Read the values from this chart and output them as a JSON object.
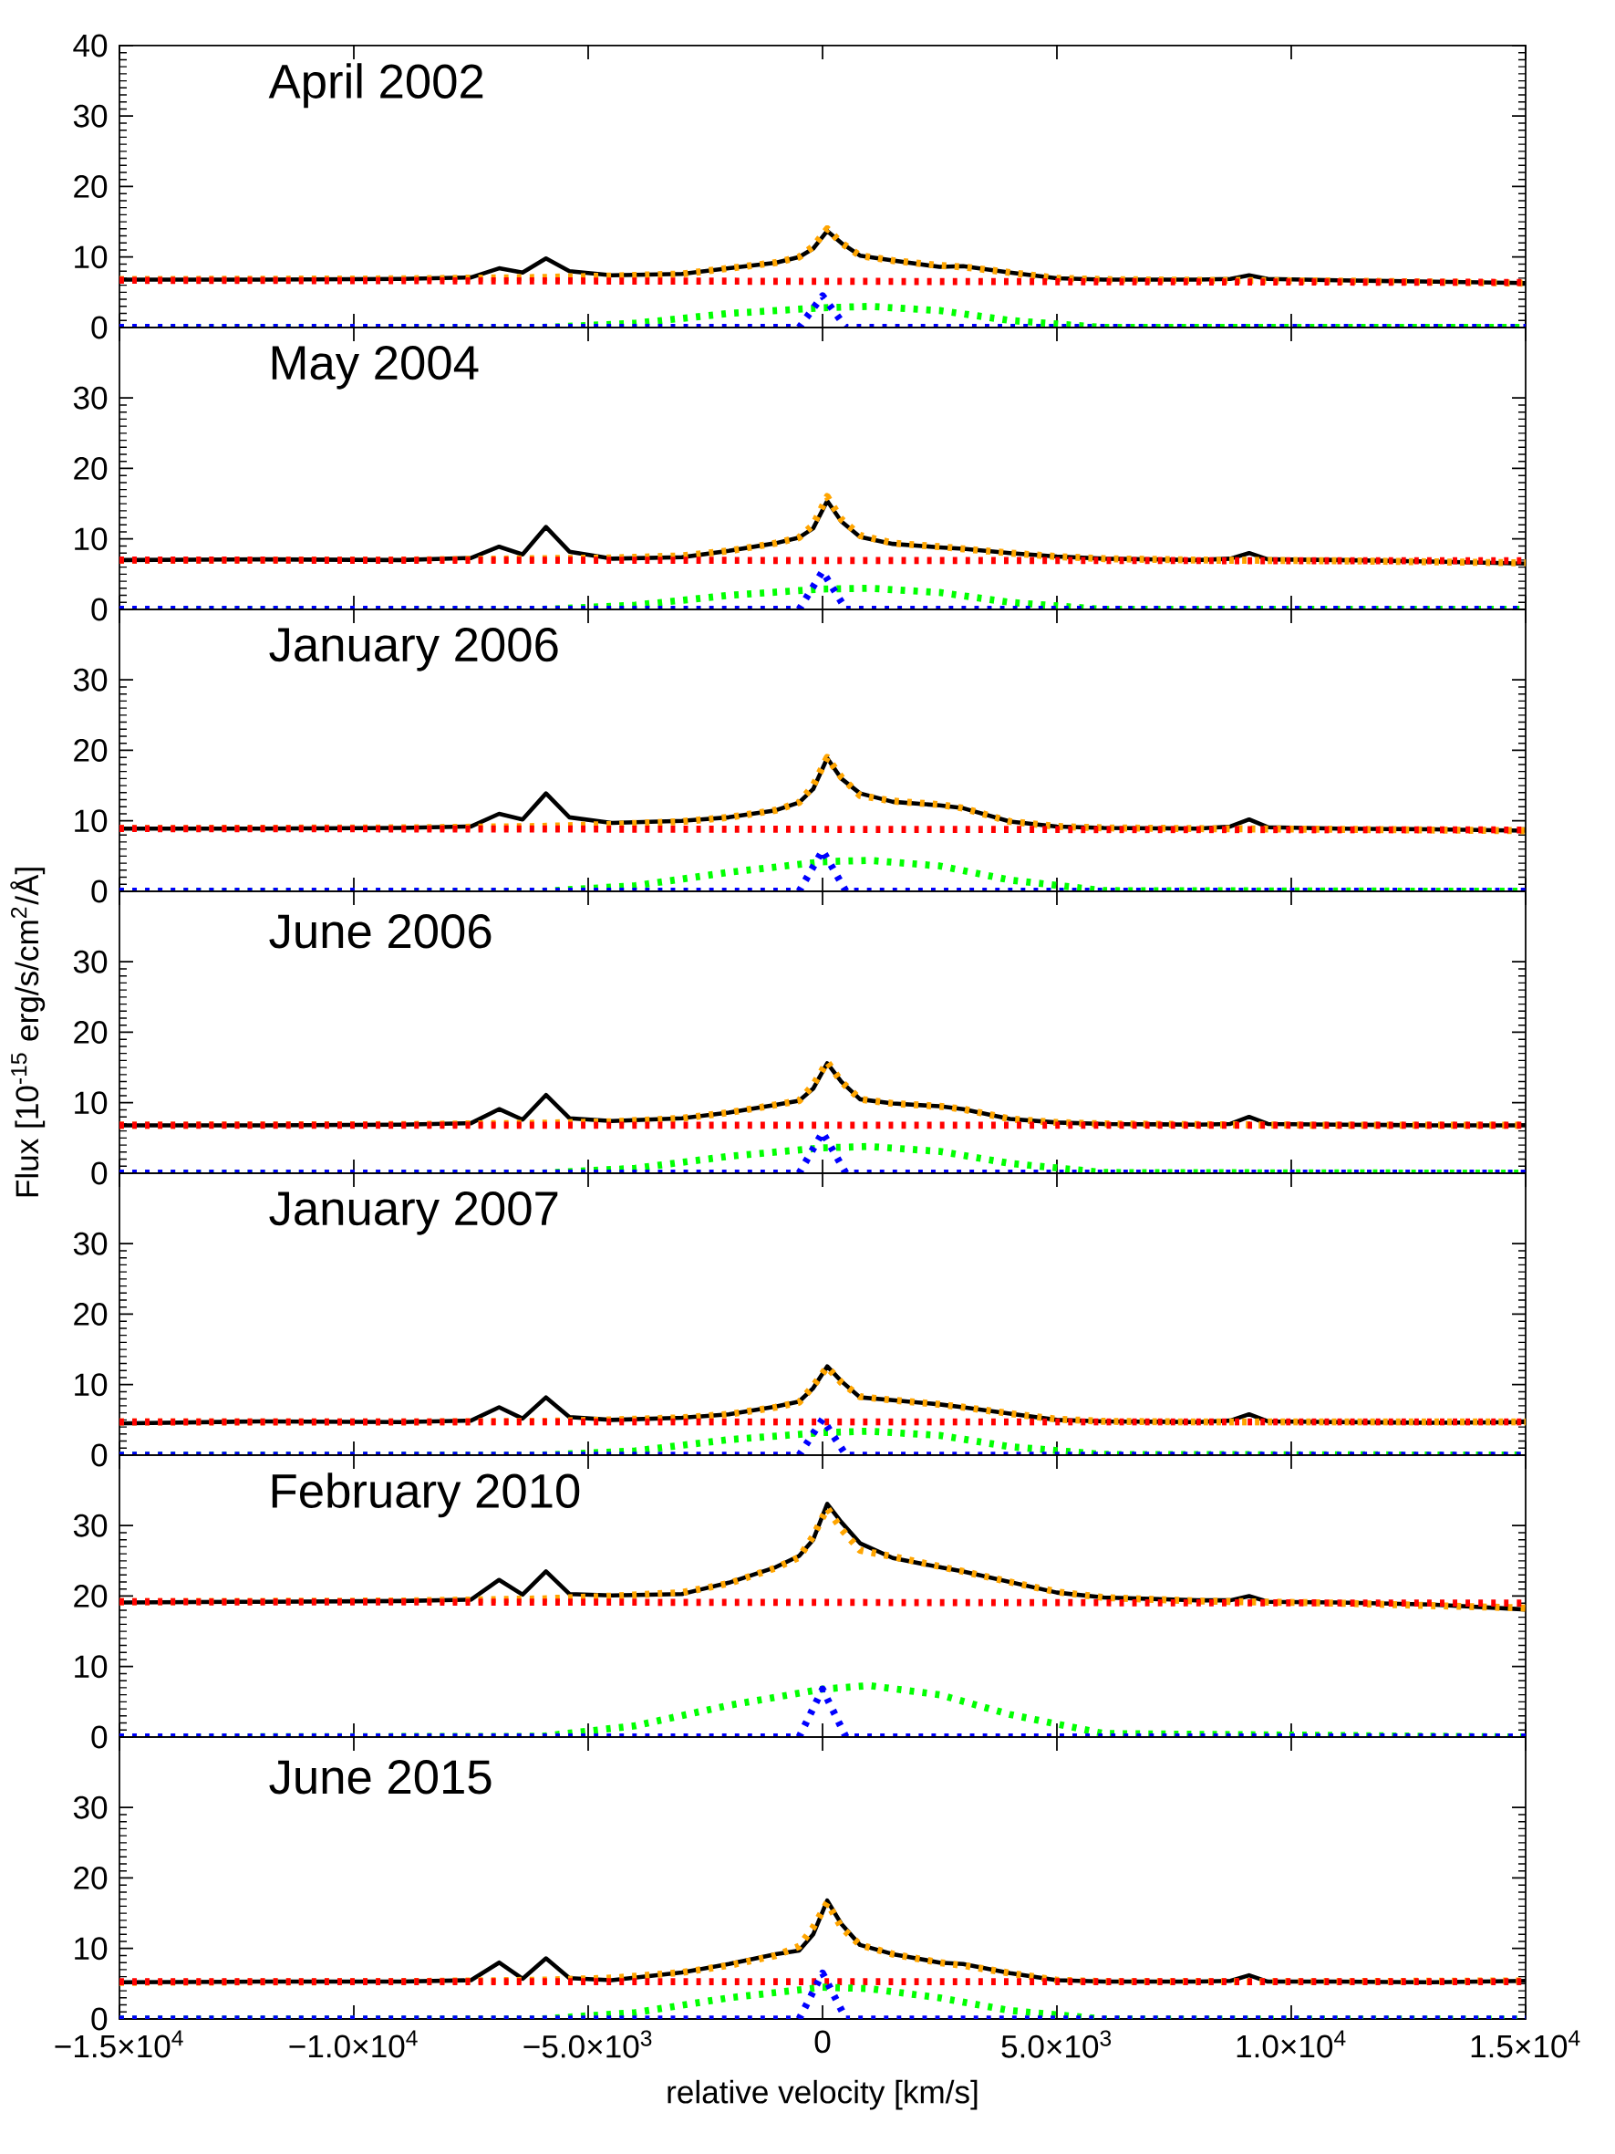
{
  "chart_data": [
    {
      "type": "line",
      "title": "April 2002",
      "xlim": [
        -15000,
        15000
      ],
      "ylim": [
        0,
        40
      ],
      "tick_labels": "y",
      "xticks": [
        {
          "value": -15000,
          "label": null
        },
        {
          "value": -10000,
          "label": null
        },
        {
          "value": -5000,
          "label": null
        },
        {
          "value": 0,
          "label": null
        },
        {
          "value": 5000,
          "label": null
        },
        {
          "value": 10000,
          "label": null
        },
        {
          "value": 15000,
          "label": null
        }
      ],
      "yticks": [
        0,
        10,
        20,
        30,
        40
      ],
      "series": [
        {
          "color": "#000000",
          "line_style": "solid",
          "x": [
            -15000,
            -12000,
            -9000,
            -7500,
            -6900,
            -6400,
            -5900,
            -5400,
            -4500,
            -3000,
            -2000,
            -1000,
            -500,
            -200,
            100,
            400,
            800,
            1500,
            2500,
            3000,
            4000,
            5000,
            6000,
            8000,
            8700,
            9100,
            9500,
            11000,
            13000,
            15000
          ],
          "values": [
            6.8,
            6.8,
            6.9,
            7.1,
            8.4,
            7.8,
            9.8,
            8.0,
            7.4,
            7.6,
            8.4,
            9.2,
            10.0,
            11.2,
            13.7,
            12.0,
            10.2,
            9.5,
            8.6,
            8.7,
            7.8,
            7.0,
            6.8,
            6.8,
            6.9,
            7.4,
            6.9,
            6.7,
            6.5,
            6.3
          ]
        },
        {
          "color": "#ffa500",
          "line_style": "dotted",
          "x": [
            -15000,
            -9000,
            -6000,
            -4500,
            -3000,
            -2000,
            -1000,
            -500,
            -200,
            100,
            400,
            800,
            1500,
            2500,
            3000,
            4000,
            5000,
            6000,
            8000,
            11000,
            15000
          ],
          "values": [
            6.8,
            6.9,
            7.1,
            7.3,
            7.6,
            8.4,
            9.2,
            10.0,
            11.5,
            14.0,
            12.0,
            10.2,
            9.5,
            8.8,
            8.6,
            7.8,
            7.0,
            6.8,
            6.7,
            6.6,
            6.3
          ]
        },
        {
          "color": "#ff0000",
          "line_style": "dotted",
          "x": [
            -15000,
            15000
          ],
          "values": [
            6.7,
            6.4
          ]
        },
        {
          "color": "#00ff00",
          "line_style": "dotted",
          "x": [
            -15000,
            -6000,
            -4000,
            -2000,
            0,
            1000,
            2500,
            4000,
            6000,
            15000
          ],
          "values": [
            0,
            0,
            0.6,
            2.0,
            2.8,
            3.0,
            2.4,
            1.0,
            0,
            0
          ]
        },
        {
          "color": "#0000ff",
          "line_style": "dotted",
          "x": [
            -15000,
            -500,
            0,
            500,
            15000
          ],
          "values": [
            0,
            0,
            4.5,
            0,
            0
          ]
        }
      ]
    },
    {
      "type": "line",
      "title": "May 2004",
      "xlim": [
        -15000,
        15000
      ],
      "ylim": [
        0,
        40
      ],
      "tick_labels": "y",
      "xticks": [
        {
          "value": -15000,
          "label": null
        },
        {
          "value": -10000,
          "label": null
        },
        {
          "value": -5000,
          "label": null
        },
        {
          "value": 0,
          "label": null
        },
        {
          "value": 5000,
          "label": null
        },
        {
          "value": 10000,
          "label": null
        },
        {
          "value": 15000,
          "label": null
        }
      ],
      "yticks": [
        0,
        10,
        20,
        30
      ],
      "series": [
        {
          "color": "#000000",
          "line_style": "solid",
          "x": [
            -15000,
            -12000,
            -9000,
            -7500,
            -6900,
            -6400,
            -5900,
            -5400,
            -4500,
            -3000,
            -2000,
            -1000,
            -500,
            -200,
            100,
            400,
            800,
            1500,
            2500,
            3000,
            4000,
            5000,
            6000,
            8000,
            8700,
            9100,
            9500,
            11000,
            13000,
            15000
          ],
          "values": [
            7.0,
            7.1,
            7.0,
            7.3,
            8.9,
            7.8,
            11.7,
            8.2,
            7.2,
            7.4,
            8.3,
            9.4,
            10.2,
            11.5,
            15.4,
            12.5,
            10.3,
            9.3,
            8.8,
            8.6,
            8.0,
            7.5,
            7.2,
            7.0,
            7.2,
            8.0,
            7.1,
            7.0,
            6.8,
            6.5
          ]
        },
        {
          "color": "#ffa500",
          "line_style": "dotted",
          "x": [
            -15000,
            -9000,
            -6000,
            -4500,
            -3000,
            -2000,
            -1000,
            -500,
            -200,
            100,
            400,
            800,
            1500,
            2500,
            3000,
            4000,
            5000,
            6000,
            8000,
            11000,
            15000
          ],
          "values": [
            7.0,
            7.0,
            7.2,
            7.3,
            7.6,
            8.3,
            9.4,
            10.2,
            12.0,
            16.0,
            12.8,
            10.5,
            9.4,
            8.9,
            8.6,
            8.0,
            7.5,
            7.2,
            7.0,
            6.9,
            6.6
          ]
        },
        {
          "color": "#ff0000",
          "line_style": "dotted",
          "x": [
            -15000,
            15000
          ],
          "values": [
            7.0,
            6.9
          ]
        },
        {
          "color": "#00ff00",
          "line_style": "dotted",
          "x": [
            -15000,
            -6000,
            -4000,
            -2000,
            0,
            1000,
            2500,
            4000,
            6000,
            15000
          ],
          "values": [
            0,
            0,
            0.6,
            2.0,
            2.9,
            3.0,
            2.4,
            1.0,
            0,
            0
          ]
        },
        {
          "color": "#0000ff",
          "line_style": "dotted",
          "x": [
            -15000,
            -500,
            0,
            500,
            15000
          ],
          "values": [
            0,
            0,
            5.4,
            0,
            0
          ]
        }
      ]
    },
    {
      "type": "line",
      "title": "January 2006",
      "xlim": [
        -15000,
        15000
      ],
      "ylim": [
        0,
        40
      ],
      "tick_labels": "y",
      "xticks": [
        {
          "value": -15000,
          "label": null
        },
        {
          "value": -10000,
          "label": null
        },
        {
          "value": -5000,
          "label": null
        },
        {
          "value": 0,
          "label": null
        },
        {
          "value": 5000,
          "label": null
        },
        {
          "value": 10000,
          "label": null
        },
        {
          "value": 15000,
          "label": null
        }
      ],
      "yticks": [
        0,
        10,
        20,
        30
      ],
      "series": [
        {
          "color": "#000000",
          "line_style": "solid",
          "x": [
            -15000,
            -12000,
            -9000,
            -7500,
            -6900,
            -6400,
            -5900,
            -5400,
            -4500,
            -3000,
            -2000,
            -1000,
            -500,
            -200,
            100,
            400,
            800,
            1500,
            2500,
            3000,
            4000,
            5000,
            6000,
            8000,
            8700,
            9100,
            9500,
            11000,
            13000,
            15000
          ],
          "values": [
            8.9,
            8.9,
            9.0,
            9.2,
            11.0,
            10.2,
            13.9,
            10.5,
            9.7,
            10.0,
            10.5,
            11.5,
            12.6,
            14.5,
            18.9,
            16.0,
            13.9,
            12.7,
            12.2,
            11.8,
            9.9,
            9.2,
            9.0,
            8.9,
            9.2,
            10.2,
            9.1,
            8.9,
            8.8,
            8.6
          ]
        },
        {
          "color": "#ffa500",
          "line_style": "dotted",
          "x": [
            -15000,
            -9000,
            -6000,
            -4500,
            -3000,
            -2000,
            -1000,
            -500,
            -200,
            100,
            400,
            800,
            1500,
            2500,
            3000,
            4000,
            5000,
            6000,
            8000,
            11000,
            15000
          ],
          "values": [
            8.9,
            9.0,
            9.2,
            9.5,
            9.9,
            10.5,
            11.5,
            12.6,
            15.0,
            19.0,
            16.2,
            13.6,
            12.8,
            12.3,
            11.8,
            9.9,
            9.2,
            9.0,
            8.9,
            8.8,
            8.6
          ]
        },
        {
          "color": "#ff0000",
          "line_style": "dotted",
          "x": [
            -15000,
            15000
          ],
          "values": [
            8.9,
            8.7
          ]
        },
        {
          "color": "#00ff00",
          "line_style": "dotted",
          "x": [
            -15000,
            -6000,
            -4000,
            -2000,
            0,
            1000,
            2500,
            4000,
            6000,
            15000
          ],
          "values": [
            0,
            0,
            0.8,
            2.7,
            4.2,
            4.4,
            3.6,
            1.6,
            0.1,
            0
          ]
        },
        {
          "color": "#0000ff",
          "line_style": "dotted",
          "x": [
            -15000,
            -500,
            0,
            500,
            15000
          ],
          "values": [
            0,
            0,
            5.8,
            0,
            0
          ]
        }
      ]
    },
    {
      "type": "line",
      "title": "June 2006",
      "ylabel": "Flux [10$^{-15}$ erg/s/cm$^{2}$/Å]",
      "xlim": [
        -15000,
        15000
      ],
      "ylim": [
        0,
        40
      ],
      "tick_labels": "y",
      "xticks": [
        {
          "value": -15000,
          "label": null
        },
        {
          "value": -10000,
          "label": null
        },
        {
          "value": -5000,
          "label": null
        },
        {
          "value": 0,
          "label": null
        },
        {
          "value": 5000,
          "label": null
        },
        {
          "value": 10000,
          "label": null
        },
        {
          "value": 15000,
          "label": null
        }
      ],
      "yticks": [
        0,
        10,
        20,
        30
      ],
      "series": [
        {
          "color": "#000000",
          "line_style": "solid",
          "x": [
            -15000,
            -12000,
            -9000,
            -7500,
            -6900,
            -6400,
            -5900,
            -5400,
            -4500,
            -3000,
            -2000,
            -1000,
            -500,
            -200,
            100,
            400,
            800,
            1500,
            2500,
            3000,
            4000,
            5000,
            6000,
            8000,
            8700,
            9100,
            9500,
            11000,
            13000,
            15000
          ],
          "values": [
            6.8,
            6.8,
            6.9,
            7.1,
            9.1,
            7.6,
            11.1,
            7.8,
            7.4,
            7.8,
            8.6,
            9.7,
            10.3,
            12.0,
            15.6,
            13.0,
            10.5,
            9.9,
            9.5,
            9.1,
            7.7,
            7.2,
            7.0,
            6.9,
            7.0,
            8.0,
            7.0,
            6.9,
            6.8,
            6.8
          ]
        },
        {
          "color": "#ffa500",
          "line_style": "dotted",
          "x": [
            -15000,
            -9000,
            -6000,
            -4500,
            -3000,
            -2000,
            -1000,
            -500,
            -200,
            100,
            400,
            800,
            1500,
            2500,
            3000,
            4000,
            5000,
            6000,
            8000,
            11000,
            15000
          ],
          "values": [
            6.8,
            6.9,
            7.1,
            7.3,
            7.8,
            8.6,
            9.7,
            10.3,
            12.5,
            15.8,
            13.0,
            10.5,
            9.9,
            9.5,
            9.1,
            7.7,
            7.2,
            7.0,
            6.9,
            6.8,
            6.8
          ]
        },
        {
          "color": "#ff0000",
          "line_style": "dotted",
          "x": [
            -15000,
            15000
          ],
          "values": [
            6.8,
            6.8
          ]
        },
        {
          "color": "#00ff00",
          "line_style": "dotted",
          "x": [
            -15000,
            -6000,
            -4000,
            -2000,
            0,
            1000,
            2500,
            4000,
            6000,
            15000
          ],
          "values": [
            0,
            0,
            0.7,
            2.4,
            3.6,
            3.8,
            3.1,
            1.4,
            0.1,
            0
          ]
        },
        {
          "color": "#0000ff",
          "line_style": "dotted",
          "x": [
            -15000,
            -500,
            0,
            500,
            15000
          ],
          "values": [
            0,
            0,
            5.8,
            0,
            0
          ]
        }
      ]
    },
    {
      "type": "line",
      "title": "January 2007",
      "xlim": [
        -15000,
        15000
      ],
      "ylim": [
        0,
        40
      ],
      "tick_labels": "y",
      "xticks": [
        {
          "value": -15000,
          "label": null
        },
        {
          "value": -10000,
          "label": null
        },
        {
          "value": -5000,
          "label": null
        },
        {
          "value": 0,
          "label": null
        },
        {
          "value": 5000,
          "label": null
        },
        {
          "value": 10000,
          "label": null
        },
        {
          "value": 15000,
          "label": null
        }
      ],
      "yticks": [
        0,
        10,
        20,
        30
      ],
      "series": [
        {
          "color": "#000000",
          "line_style": "solid",
          "x": [
            -15000,
            -12000,
            -9000,
            -7500,
            -6900,
            -6400,
            -5900,
            -5400,
            -4500,
            -3000,
            -2000,
            -1000,
            -500,
            -200,
            100,
            400,
            800,
            1500,
            2500,
            3000,
            4000,
            5000,
            6000,
            8000,
            8700,
            9100,
            9500,
            11000,
            13000,
            15000
          ],
          "values": [
            4.5,
            4.8,
            4.7,
            4.9,
            6.8,
            5.2,
            8.2,
            5.4,
            5.0,
            5.3,
            5.8,
            6.9,
            7.6,
            9.5,
            12.6,
            10.5,
            8.2,
            7.8,
            7.2,
            6.8,
            5.9,
            5.0,
            4.8,
            4.7,
            4.9,
            5.8,
            4.8,
            4.7,
            4.6,
            4.7
          ]
        },
        {
          "color": "#ffa500",
          "line_style": "dotted",
          "x": [
            -15000,
            -9000,
            -6000,
            -4500,
            -3000,
            -2000,
            -1000,
            -500,
            -200,
            100,
            400,
            800,
            1500,
            2500,
            3000,
            4000,
            5000,
            6000,
            8000,
            11000,
            15000
          ],
          "values": [
            4.7,
            4.7,
            4.8,
            5.0,
            5.3,
            5.8,
            6.8,
            7.5,
            9.8,
            12.5,
            10.3,
            8.3,
            7.8,
            7.2,
            6.8,
            5.9,
            5.1,
            4.8,
            4.7,
            4.7,
            4.7
          ]
        },
        {
          "color": "#ff0000",
          "line_style": "dotted",
          "x": [
            -15000,
            15000
          ],
          "values": [
            4.7,
            4.7
          ]
        },
        {
          "color": "#00ff00",
          "line_style": "dotted",
          "x": [
            -15000,
            -6000,
            -4000,
            -2000,
            0,
            1000,
            2500,
            4000,
            6000,
            15000
          ],
          "values": [
            0,
            0,
            0.6,
            2.2,
            3.2,
            3.4,
            2.8,
            1.2,
            0.1,
            0
          ]
        },
        {
          "color": "#0000ff",
          "line_style": "dotted",
          "x": [
            -15000,
            -500,
            0,
            500,
            15000
          ],
          "values": [
            0,
            0,
            5.1,
            0,
            0
          ]
        }
      ]
    },
    {
      "type": "line",
      "title": "February 2010",
      "xlim": [
        -15000,
        15000
      ],
      "ylim": [
        0,
        40
      ],
      "tick_labels": "y",
      "xticks": [
        {
          "value": -15000,
          "label": null
        },
        {
          "value": -10000,
          "label": null
        },
        {
          "value": -5000,
          "label": null
        },
        {
          "value": 0,
          "label": null
        },
        {
          "value": 5000,
          "label": null
        },
        {
          "value": 10000,
          "label": null
        },
        {
          "value": 15000,
          "label": null
        }
      ],
      "yticks": [
        0,
        10,
        20,
        30
      ],
      "series": [
        {
          "color": "#000000",
          "line_style": "solid",
          "x": [
            -15000,
            -12000,
            -9000,
            -7500,
            -6900,
            -6400,
            -5900,
            -5400,
            -4500,
            -3000,
            -2000,
            -1000,
            -500,
            -200,
            100,
            400,
            800,
            1500,
            2500,
            3000,
            4000,
            5000,
            6000,
            8000,
            8700,
            9100,
            9500,
            11000,
            13000,
            15000
          ],
          "values": [
            19.1,
            19.2,
            19.3,
            19.5,
            22.3,
            20.2,
            23.5,
            20.3,
            20.1,
            20.3,
            21.9,
            24.1,
            25.7,
            28.0,
            33.1,
            30.5,
            27.5,
            25.4,
            24.1,
            23.5,
            22.0,
            20.5,
            19.8,
            19.4,
            19.4,
            20.0,
            19.2,
            19.1,
            18.8,
            18.1
          ]
        },
        {
          "color": "#ffa500",
          "line_style": "dotted",
          "x": [
            -15000,
            -9000,
            -6000,
            -4500,
            -3000,
            -2000,
            -1000,
            -500,
            -200,
            100,
            400,
            800,
            1500,
            2500,
            3000,
            4000,
            5000,
            6000,
            8000,
            11000,
            15000
          ],
          "values": [
            19.2,
            19.3,
            19.6,
            20.0,
            20.5,
            21.8,
            24.0,
            25.5,
            28.5,
            32.5,
            29.5,
            26.5,
            25.6,
            24.2,
            23.5,
            22.0,
            20.6,
            19.8,
            19.3,
            19.0,
            18.3
          ]
        },
        {
          "color": "#ff0000",
          "line_style": "dotted",
          "x": [
            -15000,
            15000
          ],
          "values": [
            19.2,
            19.0
          ]
        },
        {
          "color": "#00ff00",
          "line_style": "dotted",
          "x": [
            -15000,
            -6000,
            -4000,
            -2000,
            0,
            1000,
            2500,
            4000,
            6000,
            15000
          ],
          "values": [
            0,
            0.1,
            1.6,
            4.5,
            6.8,
            7.3,
            6.0,
            3.2,
            0.5,
            0
          ]
        },
        {
          "color": "#0000ff",
          "line_style": "dotted",
          "x": [
            -15000,
            -500,
            0,
            500,
            15000
          ],
          "values": [
            0,
            0,
            6.8,
            0,
            0
          ]
        }
      ]
    },
    {
      "type": "line",
      "title": "June 2015",
      "xlabel": "relative velocity [km/s]",
      "xlim": [
        -15000,
        15000
      ],
      "ylim": [
        0,
        40
      ],
      "xticks": [
        {
          "value": -15000,
          "label": "−1.5×10$^{4}$"
        },
        {
          "value": -10000,
          "label": "−1.0×10$^{4}$"
        },
        {
          "value": -5000,
          "label": "−5.0×10$^{3}$"
        },
        0,
        {
          "value": 5000,
          "label": "5.0×10$^{3}$"
        },
        {
          "value": 10000,
          "label": "1.0×10$^{4}$"
        },
        {
          "value": 15000,
          "label": "1.5×10$^{4}$"
        }
      ],
      "yticks": [
        0,
        10,
        20,
        30
      ],
      "series": [
        {
          "color": "#000000",
          "line_style": "solid",
          "x": [
            -15000,
            -12000,
            -9000,
            -7500,
            -6900,
            -6400,
            -5900,
            -5400,
            -4500,
            -3000,
            -2000,
            -1000,
            -500,
            -200,
            100,
            400,
            800,
            1500,
            2500,
            3000,
            4000,
            5000,
            6000,
            8000,
            8700,
            9100,
            9500,
            11000,
            13000,
            15000
          ],
          "values": [
            5.2,
            5.3,
            5.3,
            5.5,
            8.0,
            5.7,
            8.6,
            5.8,
            5.5,
            6.6,
            7.8,
            9.2,
            9.7,
            12.0,
            16.8,
            13.5,
            10.5,
            9.2,
            8.0,
            7.8,
            6.5,
            5.5,
            5.3,
            5.3,
            5.4,
            6.2,
            5.3,
            5.3,
            5.2,
            5.4
          ]
        },
        {
          "color": "#ffa500",
          "line_style": "dotted",
          "x": [
            -15000,
            -9000,
            -6000,
            -4500,
            -3000,
            -2000,
            -1000,
            -500,
            -200,
            100,
            400,
            800,
            1500,
            2500,
            3000,
            4000,
            5000,
            6000,
            8000,
            11000,
            15000
          ],
          "values": [
            5.2,
            5.3,
            5.5,
            5.8,
            6.6,
            7.6,
            9.0,
            10.3,
            13.0,
            16.5,
            13.0,
            10.5,
            9.2,
            8.0,
            7.6,
            6.5,
            5.5,
            5.3,
            5.3,
            5.3,
            5.4
          ]
        },
        {
          "color": "#ff0000",
          "line_style": "dotted",
          "x": [
            -15000,
            15000
          ],
          "values": [
            5.3,
            5.3
          ]
        },
        {
          "color": "#00ff00",
          "line_style": "dotted",
          "x": [
            -15000,
            -6000,
            -4000,
            -2000,
            0,
            1000,
            2500,
            4000,
            6000,
            15000
          ],
          "values": [
            0,
            0,
            0.9,
            3.0,
            4.5,
            4.3,
            3.0,
            1.2,
            0,
            0
          ]
        },
        {
          "color": "#0000ff",
          "line_style": "dotted",
          "x": [
            -15000,
            -500,
            0,
            500,
            15000
          ],
          "values": [
            0,
            0,
            6.5,
            0,
            0
          ]
        }
      ]
    }
  ]
}
